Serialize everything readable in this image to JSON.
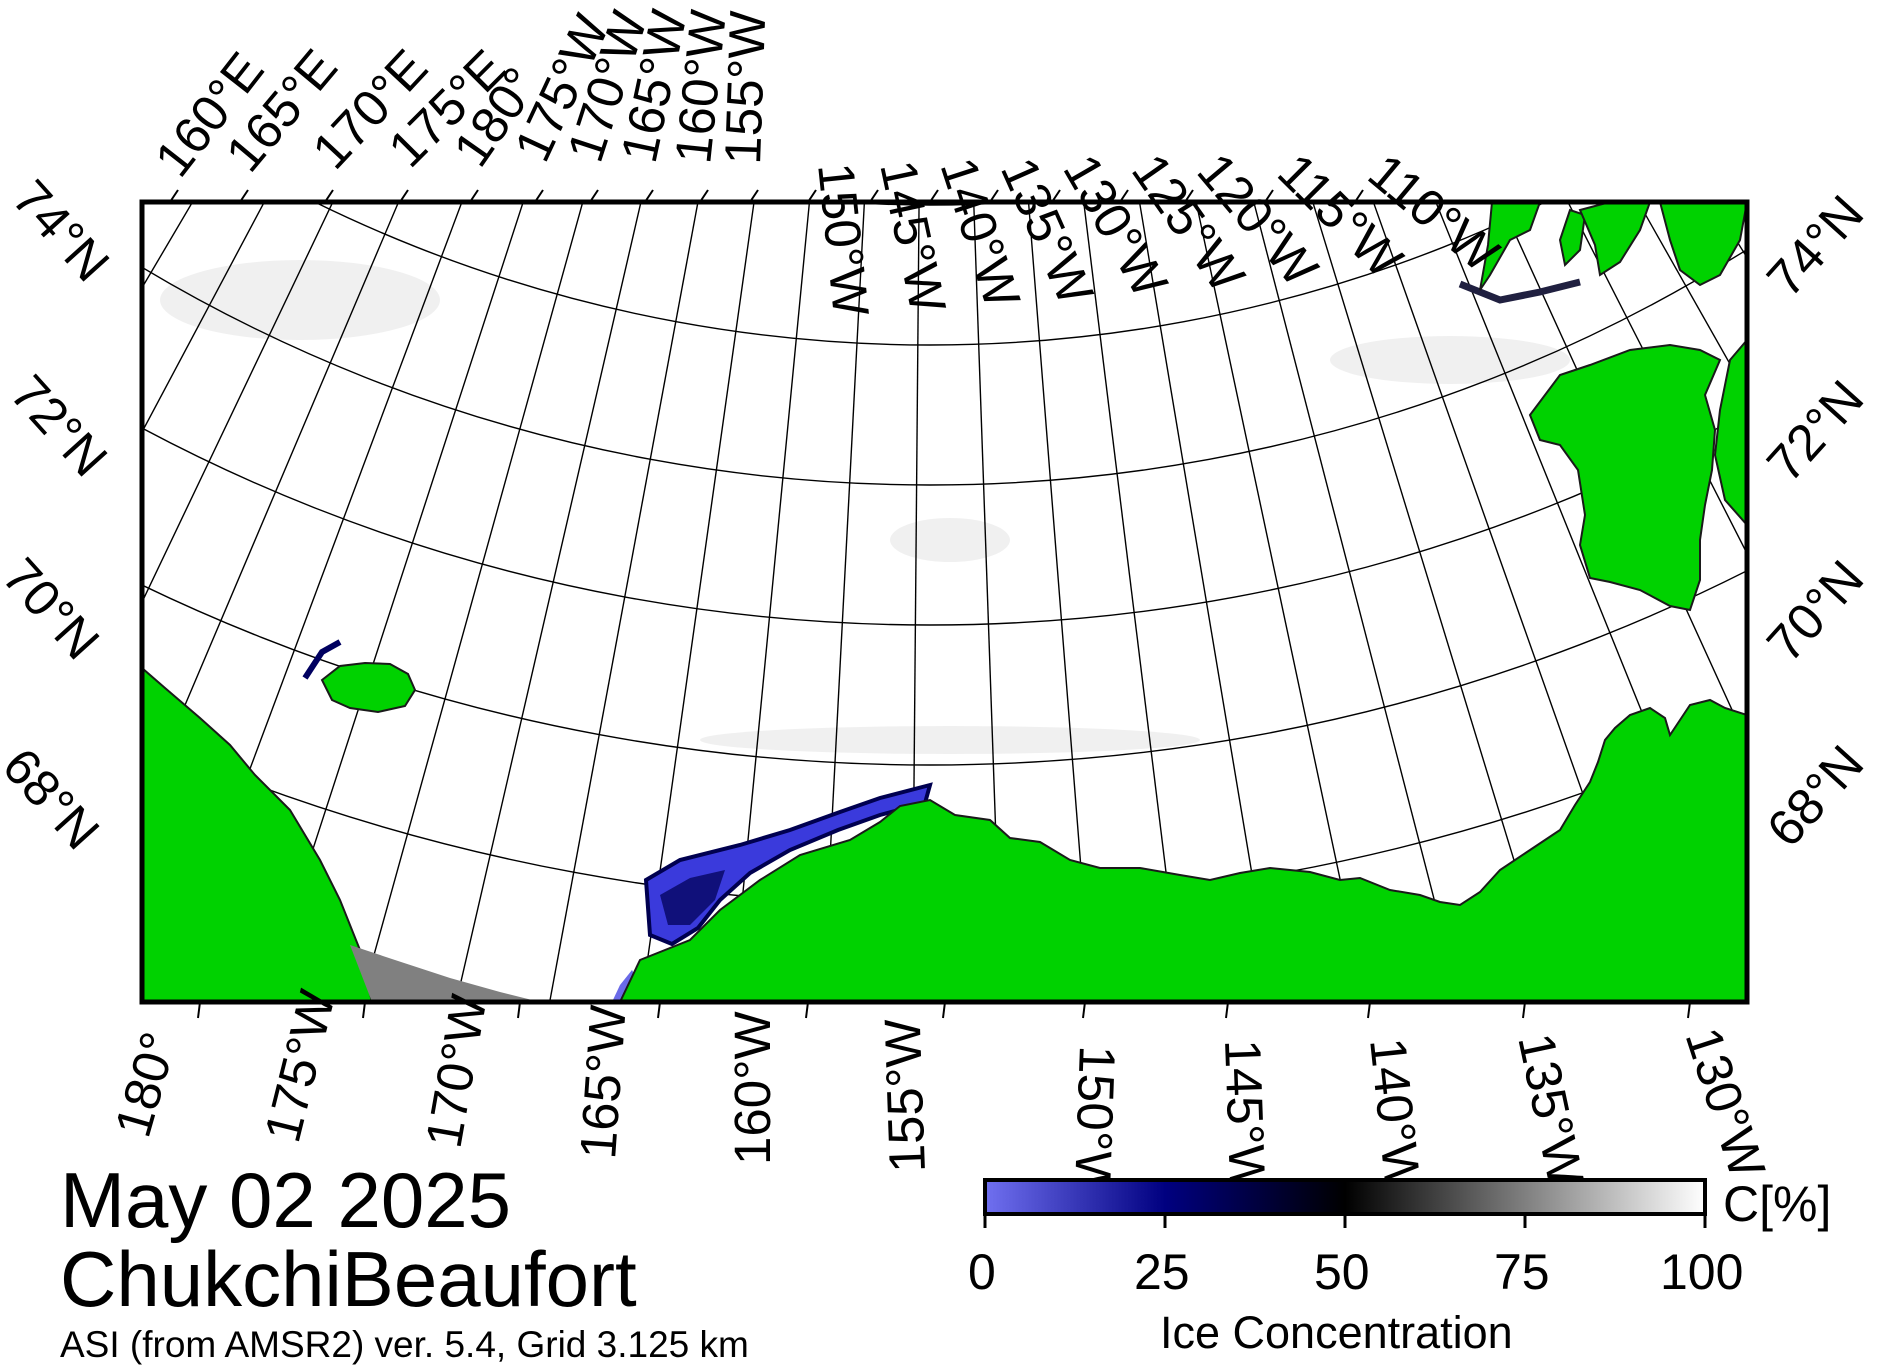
{
  "map": {
    "top_longitude_labels": [
      "160°E",
      "165°E",
      "170°E",
      "175°E",
      "180°",
      "175°W",
      "170°W",
      "165°W",
      "160°W",
      "155°W",
      "150°W",
      "145°W",
      "140°W",
      "135°W",
      "130°W",
      "125°W",
      "120°W",
      "115°W",
      "110°W"
    ],
    "bottom_longitude_labels": [
      "180°",
      "175°W",
      "170°W",
      "165°W",
      "160°W",
      "155°W",
      "150°W",
      "145°W",
      "140°W",
      "135°W",
      "130°W"
    ],
    "left_latitude_labels": [
      "74°N",
      "72°N",
      "70°N",
      "68°N"
    ],
    "right_latitude_labels": [
      "74°N",
      "72°N",
      "70°N",
      "68°N"
    ],
    "colors": {
      "land": "#00d200",
      "no_data": "#808080",
      "ice_full": "#ffffff",
      "open_water": "#7070f0",
      "ice_50": "#000000",
      "ice_25": "#000080"
    }
  },
  "title": {
    "date": "May 02 2025",
    "region": "ChukchiBeaufort",
    "product": "ASI (from AMSR2) ver. 5.4,  Grid 3.125 km"
  },
  "colorbar": {
    "label": "Ice Concentration",
    "unit": "C[%]",
    "ticks": [
      "0",
      "25",
      "50",
      "75",
      "100"
    ],
    "min": 0,
    "max": 100,
    "gradient_stops": [
      {
        "value": 0,
        "color": "#7070f0"
      },
      {
        "value": 25,
        "color": "#000080"
      },
      {
        "value": 50,
        "color": "#000000"
      },
      {
        "value": 100,
        "color": "#ffffff"
      }
    ]
  }
}
